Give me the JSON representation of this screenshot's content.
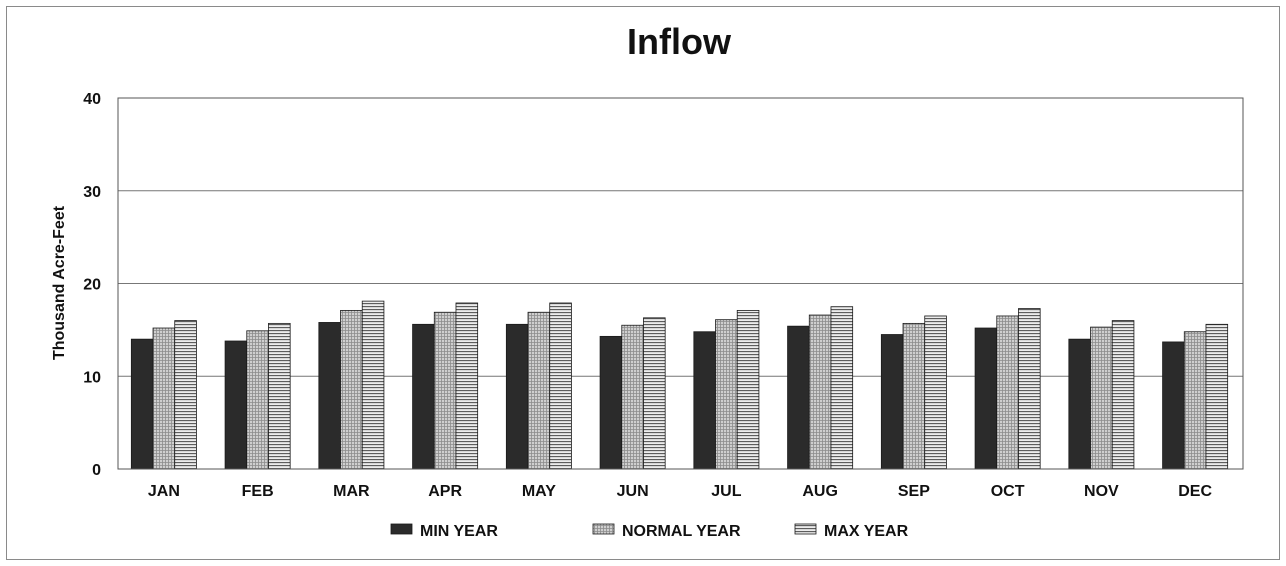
{
  "chart_data": {
    "type": "bar",
    "title": "Inflow",
    "xlabel": "",
    "ylabel": "Thousand Acre-Feet",
    "ylim": [
      0,
      40
    ],
    "yticks": [
      0,
      10,
      20,
      30,
      40
    ],
    "grid": true,
    "legend_position": "bottom",
    "categories": [
      "JAN",
      "FEB",
      "MAR",
      "APR",
      "MAY",
      "JUN",
      "JUL",
      "AUG",
      "SEP",
      "OCT",
      "NOV",
      "DEC"
    ],
    "series": [
      {
        "name": "MIN YEAR",
        "color": "#2b2b2b",
        "pattern": "solid",
        "values": [
          14.0,
          13.8,
          15.8,
          15.6,
          15.6,
          14.3,
          14.8,
          15.4,
          14.5,
          15.2,
          14.0,
          13.7
        ]
      },
      {
        "name": "NORMAL YEAR",
        "color": "#c8c8c8",
        "pattern": "fine-grid",
        "values": [
          15.2,
          14.9,
          17.1,
          16.9,
          16.9,
          15.5,
          16.1,
          16.6,
          15.7,
          16.5,
          15.3,
          14.8
        ]
      },
      {
        "name": "MAX YEAR",
        "color": "#bdbdbd",
        "pattern": "horizontal-lines",
        "values": [
          16.0,
          15.7,
          18.1,
          17.9,
          17.9,
          16.3,
          17.1,
          17.5,
          16.5,
          17.3,
          16.0,
          15.6
        ]
      }
    ]
  }
}
